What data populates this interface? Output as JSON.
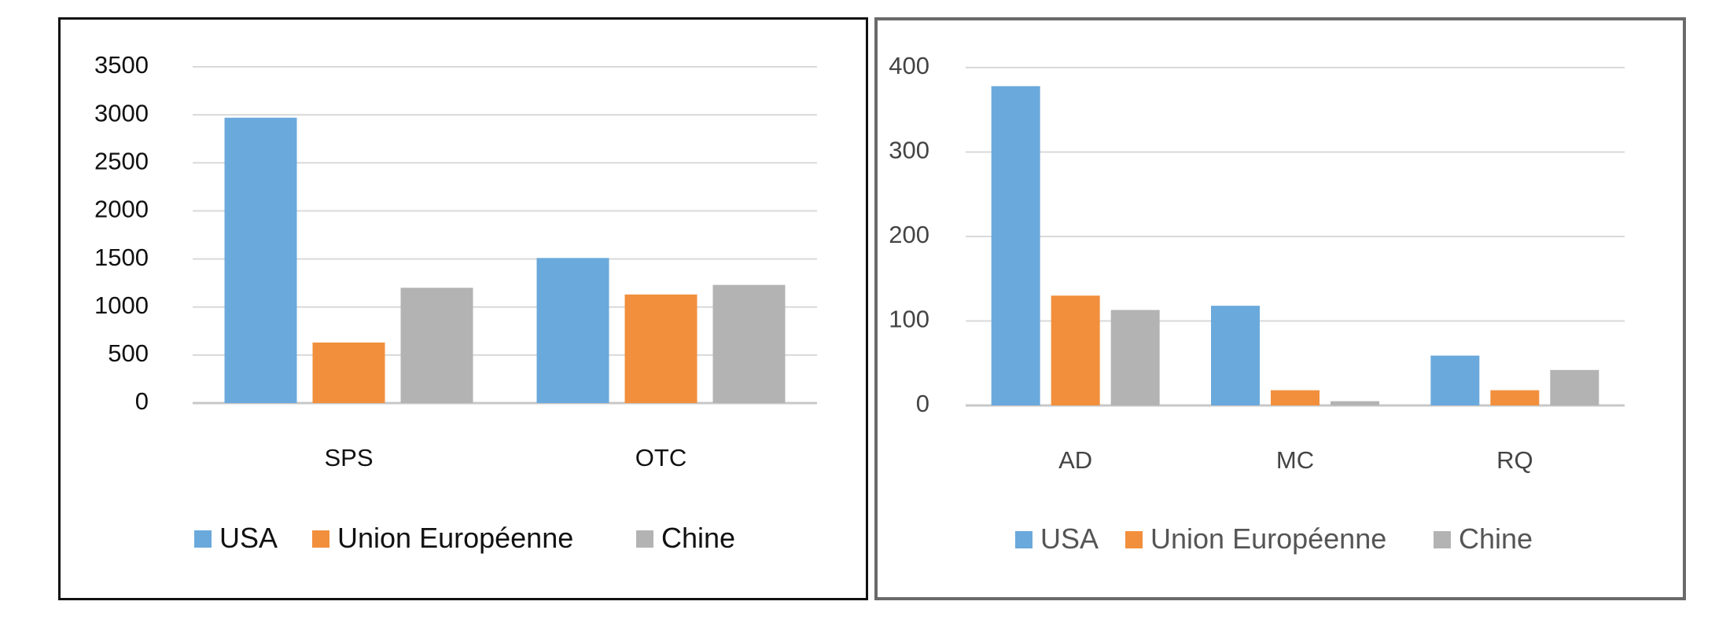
{
  "chart_data": [
    {
      "type": "bar",
      "categories": [
        "SPS",
        "OTC"
      ],
      "series": [
        {
          "name": "USA",
          "values": [
            2970,
            1510
          ]
        },
        {
          "name": "Union Européenne",
          "values": [
            630,
            1130
          ]
        },
        {
          "name": "Chine",
          "values": [
            1200,
            1230
          ]
        }
      ],
      "yticks": [
        "0",
        "500",
        "1000",
        "1500",
        "2000",
        "2500",
        "3000",
        "3500"
      ],
      "ylim": [
        0,
        3500
      ],
      "grid": true,
      "legend": "bottom",
      "colors": [
        "#6aa9dc",
        "#f28f3c",
        "#b3b3b3"
      ]
    },
    {
      "type": "bar",
      "categories": [
        "AD",
        "MC",
        "RQ"
      ],
      "series": [
        {
          "name": "USA",
          "values": [
            378,
            118,
            59
          ]
        },
        {
          "name": "Union Européenne",
          "values": [
            130,
            18,
            18
          ]
        },
        {
          "name": "Chine",
          "values": [
            113,
            5,
            42
          ]
        }
      ],
      "yticks": [
        "0",
        "100",
        "200",
        "300",
        "400"
      ],
      "ylim": [
        0,
        400
      ],
      "grid": true,
      "legend": "bottom",
      "colors": [
        "#6aa9dc",
        "#f28f3c",
        "#b3b3b3"
      ]
    }
  ]
}
